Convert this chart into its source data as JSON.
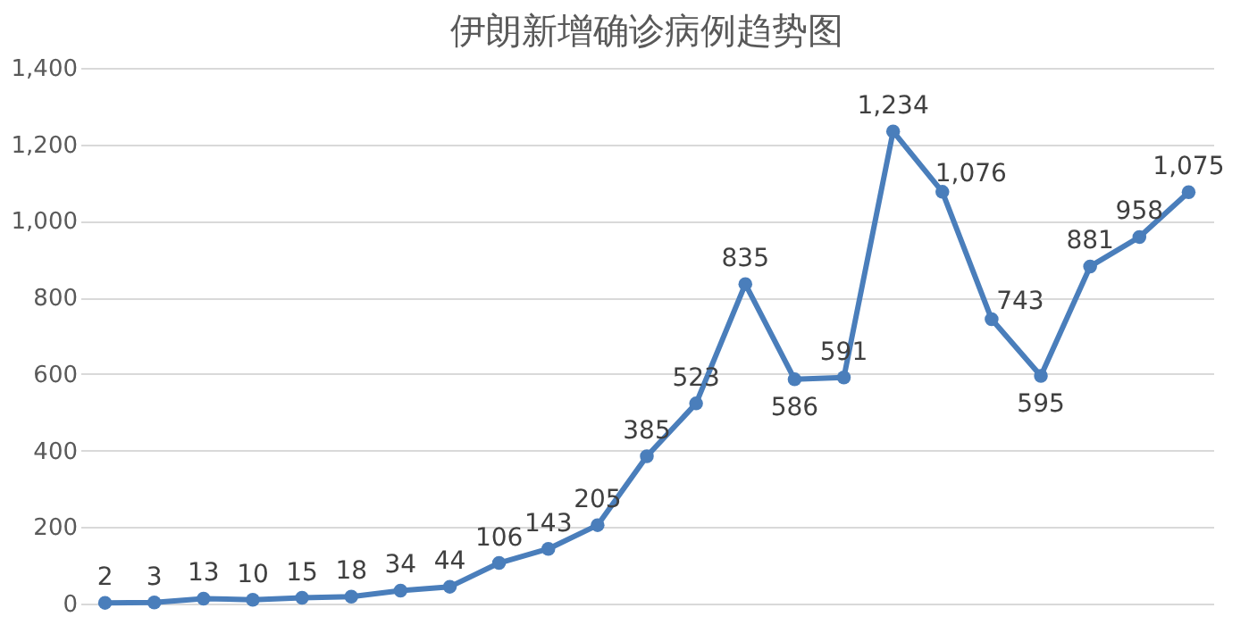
{
  "chart_data": {
    "type": "line",
    "title": "伊朗新增确诊病例趋势图",
    "categories": [
      null,
      null,
      null,
      null,
      null,
      null,
      null,
      null,
      null,
      null,
      null,
      null,
      null,
      null,
      null,
      null,
      null,
      null,
      null,
      null,
      null,
      null,
      null
    ],
    "series": [
      {
        "color": "#4a7ebb",
        "values": [
          2,
          3,
          13,
          10,
          15,
          18,
          34,
          44,
          106,
          143,
          205,
          385,
          523,
          835,
          586,
          591,
          1234,
          1076,
          743,
          595,
          881,
          958,
          1075
        ],
        "value_labels": [
          "2",
          "3",
          "13",
          "10",
          "15",
          "18",
          "34",
          "44",
          "106",
          "143",
          "205",
          "385",
          "523",
          "835",
          "586",
          "591",
          "1,234",
          "1,076",
          "743",
          "595",
          "881",
          "958",
          "1,075"
        ]
      }
    ],
    "ylim": [
      0,
      1400
    ],
    "yticks": [
      {
        "value": 0,
        "label": "0"
      },
      {
        "value": 200,
        "label": "200"
      },
      {
        "value": 400,
        "label": "400"
      },
      {
        "value": 600,
        "label": "600"
      },
      {
        "value": 800,
        "label": "800"
      },
      {
        "value": 1000,
        "label": "1,000"
      },
      {
        "value": 1200,
        "label": "1,200"
      },
      {
        "value": 1400,
        "label": "1,400"
      }
    ],
    "grid": "y",
    "marker": "circle",
    "line_style": "solid",
    "tick_labels": "y"
  }
}
